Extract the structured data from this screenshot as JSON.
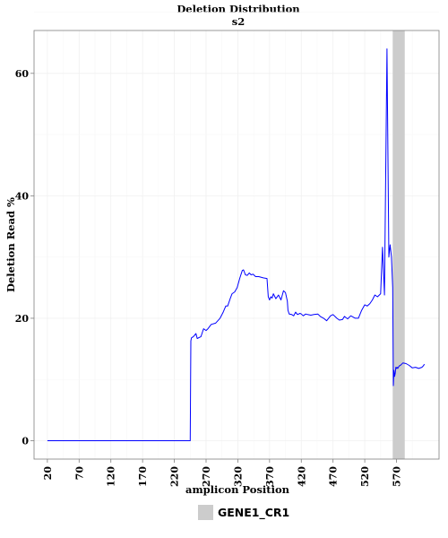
{
  "chart_data": {
    "type": "line",
    "title": "Deletion Distribution",
    "subtitle": "s2",
    "xlabel": "amplicon Position",
    "ylabel": "Deletion Read %",
    "xlim": [
      -1,
      637
    ],
    "ylim": [
      -3,
      67
    ],
    "x_ticks": [
      20,
      70,
      120,
      170,
      220,
      270,
      320,
      370,
      420,
      470,
      520,
      570
    ],
    "y_ticks": [
      0,
      20,
      40,
      60
    ],
    "grid": true,
    "legend_position": "bottom",
    "highlight_regions": [
      {
        "name": "GENE1_CR1",
        "x_start": 564,
        "x_end": 583,
        "color": "#cccccc"
      }
    ],
    "series": [
      {
        "color": "#0000ff",
        "x": [
          20,
          26,
          28,
          245,
          246,
          247,
          250,
          254,
          256,
          262,
          266,
          270,
          273,
          278,
          285,
          292,
          297,
          301,
          304,
          308,
          311,
          315,
          319,
          323,
          327,
          329,
          332,
          335,
          338,
          341,
          344,
          348,
          353,
          360,
          366,
          368,
          370,
          372,
          374,
          376,
          380,
          384,
          388,
          392,
          395,
          398,
          399,
          401,
          405,
          408,
          411,
          414,
          418,
          420,
          423,
          427,
          430,
          435,
          440,
          446,
          450,
          455,
          460,
          466,
          470,
          476,
          480,
          485,
          488,
          493,
          498,
          500,
          505,
          510,
          515,
          520,
          524,
          528,
          532,
          536,
          540,
          545,
          548,
          551,
          555,
          558,
          560,
          562,
          564,
          565,
          566,
          567,
          568,
          569,
          570,
          571,
          572,
          573,
          574,
          576,
          578,
          580,
          585,
          590,
          595,
          600,
          605,
          610,
          612,
          614
        ],
        "y": [
          0,
          0,
          0,
          0,
          16.3,
          16.8,
          17.0,
          17.5,
          16.7,
          17.0,
          18.3,
          18.0,
          18.3,
          19.0,
          19.2,
          20.0,
          21.0,
          22.0,
          22.0,
          23.2,
          24.0,
          24.3,
          25.0,
          26.5,
          27.8,
          27.9,
          27.1,
          27.0,
          27.4,
          27.1,
          27.2,
          26.8,
          26.8,
          26.6,
          26.5,
          23.5,
          23.0,
          23.5,
          23.3,
          24.0,
          23.2,
          23.8,
          23.0,
          24.5,
          24.2,
          22.8,
          21.3,
          20.7,
          20.6,
          20.4,
          21.0,
          20.6,
          20.8,
          20.7,
          20.4,
          20.7,
          20.6,
          20.5,
          20.6,
          20.7,
          20.3,
          20.0,
          19.6,
          20.4,
          20.6,
          20.0,
          19.7,
          19.8,
          20.3,
          19.9,
          20.4,
          20.3,
          20.0,
          20.0,
          21.3,
          22.2,
          22.0,
          22.4,
          23.0,
          23.8,
          23.5,
          24.0,
          31.6,
          23.8,
          64.0,
          30.0,
          32.0,
          30.0,
          25.0,
          9.0,
          11.5,
          10.5,
          11.0,
          12.0,
          11.8,
          12.0,
          11.8,
          12.0,
          12.2,
          12.3,
          12.5,
          12.7,
          12.6,
          12.3,
          11.9,
          12.0,
          11.8,
          12.0,
          12.2,
          12.5
        ],
        "x_start_spike": [
          564,
          565,
          566
        ],
        "_note": ""
      }
    ]
  }
}
